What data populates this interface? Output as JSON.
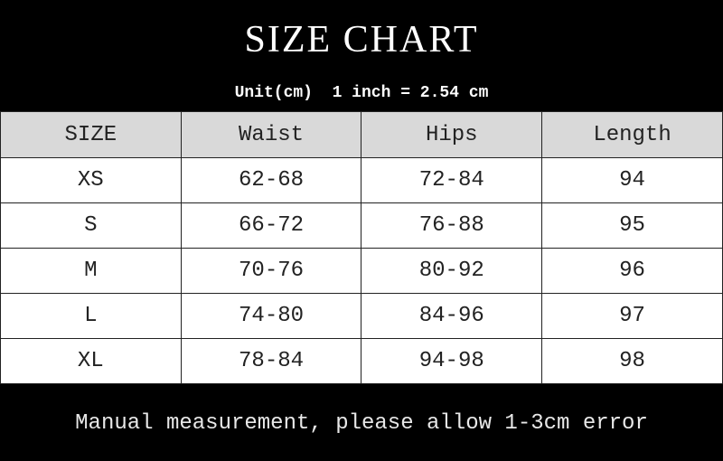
{
  "title": "SIZE CHART",
  "unit_note": "Unit(cm)  1 inch = 2.54 cm",
  "table": {
    "headers": [
      "SIZE",
      "Waist",
      "Hips",
      "Length"
    ],
    "rows": [
      [
        "XS",
        "62-68",
        "72-84",
        "94"
      ],
      [
        "S",
        "66-72",
        "76-88",
        "95"
      ],
      [
        "M",
        "70-76",
        "80-92",
        "96"
      ],
      [
        "L",
        "74-80",
        "84-96",
        "97"
      ],
      [
        "XL",
        "78-84",
        "94-98",
        "98"
      ]
    ]
  },
  "footer_note": "Manual measurement, please allow 1-3cm error",
  "colors": {
    "background": "#000000",
    "header_row": "#d9d9d9",
    "cell": "#ffffff"
  }
}
